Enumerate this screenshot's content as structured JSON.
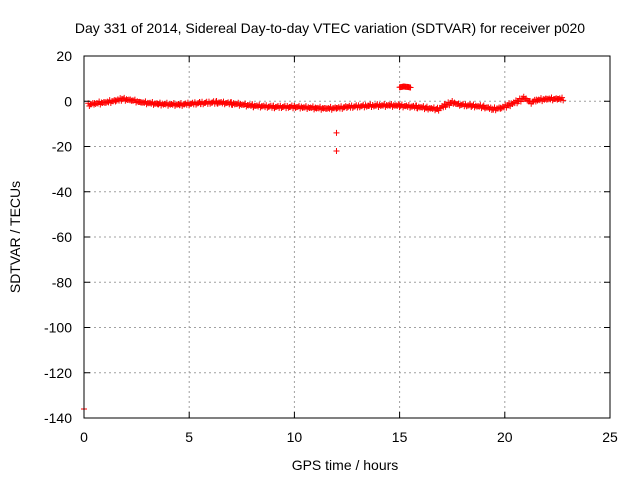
{
  "chart_data": {
    "type": "scatter",
    "title": "Day 331 of 2014, Sidereal Day-to-day VTEC variation (SDTVAR) for receiver p020",
    "xlabel": "GPS time / hours",
    "ylabel": "SDTVAR / TECUs",
    "xlim": [
      0,
      25
    ],
    "ylim": [
      -140,
      20
    ],
    "xticks": [
      0,
      5,
      10,
      15,
      20,
      25
    ],
    "yticks": [
      -140,
      -120,
      -100,
      -80,
      -60,
      -40,
      -20,
      0,
      20
    ],
    "grid": true,
    "marker": "+",
    "color": "#ff0000",
    "series": [
      {
        "name": "SDTVAR",
        "trend": [
          [
            0.2,
            -1.5
          ],
          [
            0.5,
            -1.0
          ],
          [
            1.0,
            -0.5
          ],
          [
            1.5,
            0.3
          ],
          [
            1.8,
            1.0
          ],
          [
            2.2,
            0.5
          ],
          [
            2.7,
            -0.5
          ],
          [
            3.5,
            -1.2
          ],
          [
            4.5,
            -1.5
          ],
          [
            5.5,
            -0.8
          ],
          [
            6.3,
            -0.5
          ],
          [
            7.0,
            -1.0
          ],
          [
            8.0,
            -2.0
          ],
          [
            9.0,
            -2.5
          ],
          [
            10.0,
            -2.5
          ],
          [
            11.0,
            -3.0
          ],
          [
            11.5,
            -3.2
          ],
          [
            12.0,
            -3.0
          ],
          [
            12.5,
            -2.5
          ],
          [
            13.5,
            -2.0
          ],
          [
            14.5,
            -1.8
          ],
          [
            15.0,
            -2.0
          ],
          [
            15.8,
            -2.5
          ],
          [
            16.3,
            -3.0
          ],
          [
            16.8,
            -3.5
          ],
          [
            17.2,
            -1.5
          ],
          [
            17.5,
            -0.5
          ],
          [
            17.8,
            -1.5
          ],
          [
            18.4,
            -2.0
          ],
          [
            19.0,
            -2.5
          ],
          [
            19.4,
            -3.5
          ],
          [
            19.8,
            -3.0
          ],
          [
            20.2,
            -1.5
          ],
          [
            20.6,
            0.0
          ],
          [
            20.9,
            1.5
          ],
          [
            21.2,
            -0.5
          ],
          [
            21.5,
            0.5
          ],
          [
            22.0,
            1.0
          ],
          [
            22.5,
            1.0
          ],
          [
            22.8,
            1.0
          ]
        ],
        "cluster": [
          [
            15.0,
            6.2
          ],
          [
            15.2,
            6.5
          ],
          [
            15.4,
            6.3
          ],
          [
            15.55,
            6.0
          ]
        ],
        "outliers": [
          [
            12.0,
            -14.0
          ],
          [
            12.0,
            -22.0
          ],
          [
            0.0,
            -136.0
          ]
        ]
      }
    ]
  }
}
